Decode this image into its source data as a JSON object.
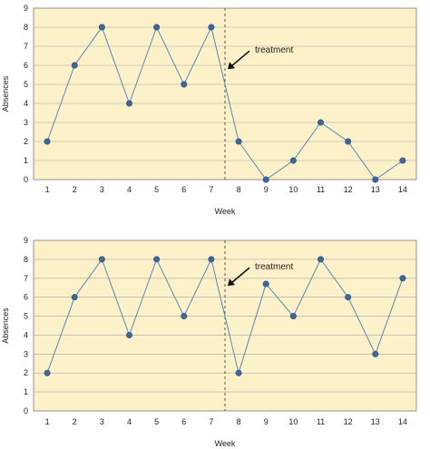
{
  "chart_data": [
    {
      "type": "line",
      "xlabel": "Week",
      "ylabel": "Absences",
      "x": [
        1,
        2,
        3,
        4,
        5,
        6,
        7,
        8,
        9,
        10,
        11,
        12,
        13,
        14
      ],
      "values": [
        2,
        6,
        8,
        4,
        8,
        5,
        8,
        2,
        0,
        1,
        3,
        2,
        0,
        1
      ],
      "ylim": [
        0,
        9
      ],
      "xlim": [
        0.5,
        14.5
      ],
      "yticks": [
        0,
        1,
        2,
        3,
        4,
        5,
        6,
        7,
        8,
        9
      ],
      "xticks": [
        1,
        2,
        3,
        4,
        5,
        6,
        7,
        8,
        9,
        10,
        11,
        12,
        13,
        14
      ],
      "phase_change_x": 7.5,
      "annotation": {
        "text": "treatment",
        "points_to": {
          "x": 7.6,
          "y": 5.8
        }
      },
      "grid": "horizontal",
      "colors": {
        "background": "#fdf1c9",
        "line": "#5a87b8",
        "marker": "#3e6799"
      }
    },
    {
      "type": "line",
      "xlabel": "Week",
      "ylabel": "Absences",
      "x": [
        1,
        2,
        3,
        4,
        5,
        6,
        7,
        8,
        9,
        10,
        11,
        12,
        13,
        14
      ],
      "values": [
        2,
        6,
        8,
        4,
        8,
        5,
        8,
        2,
        6.7,
        5,
        8,
        6,
        3,
        7
      ],
      "ylim": [
        0,
        9
      ],
      "xlim": [
        0.5,
        14.5
      ],
      "yticks": [
        0,
        1,
        2,
        3,
        4,
        5,
        6,
        7,
        8,
        9
      ],
      "xticks": [
        1,
        2,
        3,
        4,
        5,
        6,
        7,
        8,
        9,
        10,
        11,
        12,
        13,
        14
      ],
      "phase_change_x": 7.5,
      "annotation": {
        "text": "treatment",
        "points_to": {
          "x": 7.6,
          "y": 6.6
        }
      },
      "grid": "horizontal",
      "colors": {
        "background": "#fdf1c9",
        "line": "#5a87b8",
        "marker": "#3e6799"
      }
    }
  ]
}
